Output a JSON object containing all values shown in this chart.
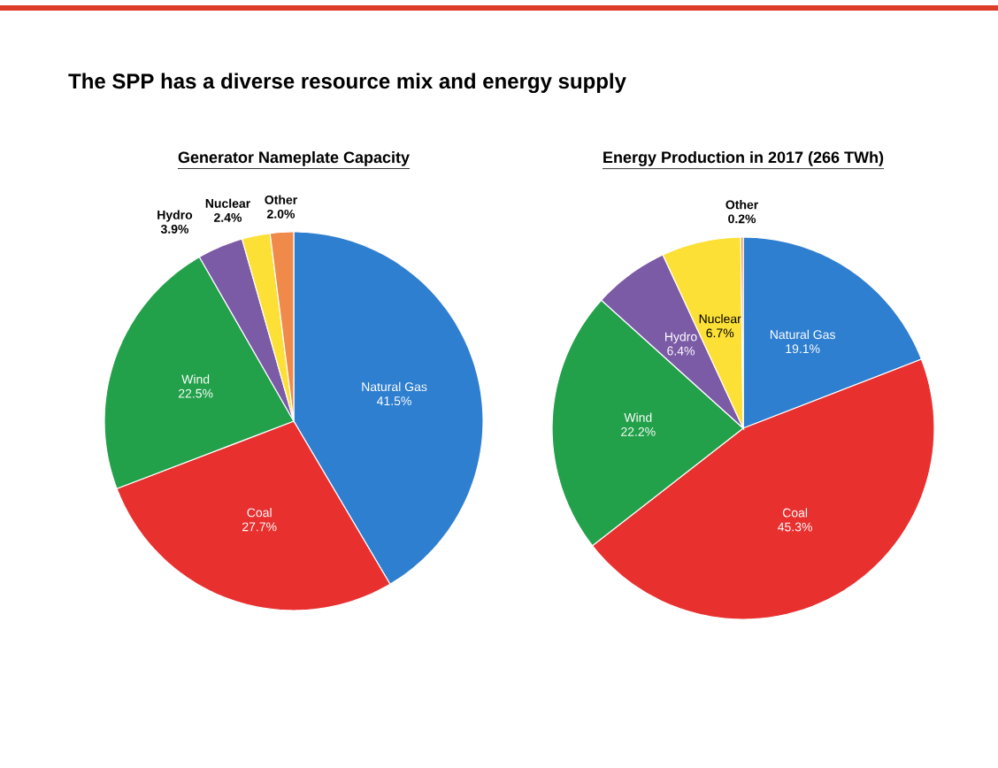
{
  "chart_data": [
    {
      "type": "pie",
      "title": "Generator Nameplate Capacity",
      "annotations": [
        "The SPP has a diverse resource mix and energy supply"
      ],
      "categories": [
        "Natural Gas",
        "Coal",
        "Wind",
        "Hydro",
        "Nuclear",
        "Other"
      ],
      "values": [
        41.5,
        27.7,
        22.5,
        3.9,
        2.4,
        2.0
      ],
      "value_labels": [
        "41.5%",
        "27.7%",
        "22.5%",
        "3.9%",
        "2.4%",
        "2.0%"
      ],
      "colors": [
        "#2f7fd0",
        "#e8302f",
        "#22a04a",
        "#7b5aa6",
        "#fde036",
        "#f08a4b"
      ]
    },
    {
      "type": "pie",
      "title": "Energy Production in 2017 (266 TWh)",
      "categories": [
        "Natural Gas",
        "Coal",
        "Wind",
        "Hydro",
        "Nuclear",
        "Other"
      ],
      "values": [
        19.1,
        45.3,
        22.2,
        6.4,
        6.7,
        0.2
      ],
      "value_labels": [
        "19.1%",
        "45.3%",
        "22.2%",
        "6.4%",
        "6.7%",
        "0.2%"
      ],
      "colors": [
        "#2f7fd0",
        "#e8302f",
        "#22a04a",
        "#7b5aa6",
        "#fde036",
        "#f08a4b"
      ]
    }
  ]
}
